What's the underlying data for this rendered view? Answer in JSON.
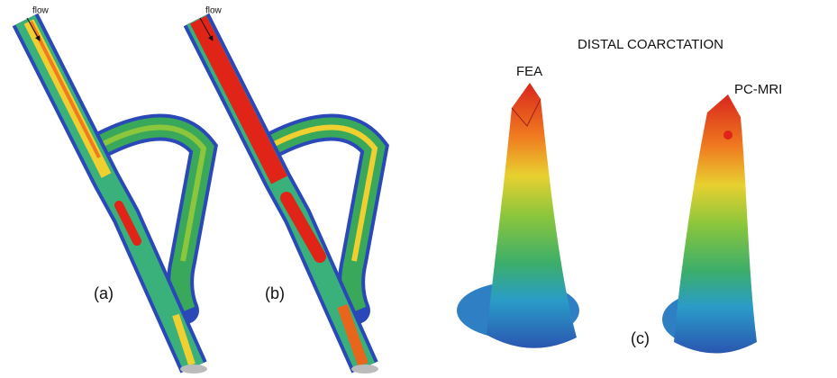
{
  "panels": [
    {
      "label": "(a)",
      "annotation": "flow"
    },
    {
      "label": "(b)",
      "annotation": "flow"
    },
    {
      "label": "(c)",
      "title": "DISTAL COARCTATION",
      "subplots": [
        "FEA",
        "PC-MRI"
      ]
    }
  ]
}
